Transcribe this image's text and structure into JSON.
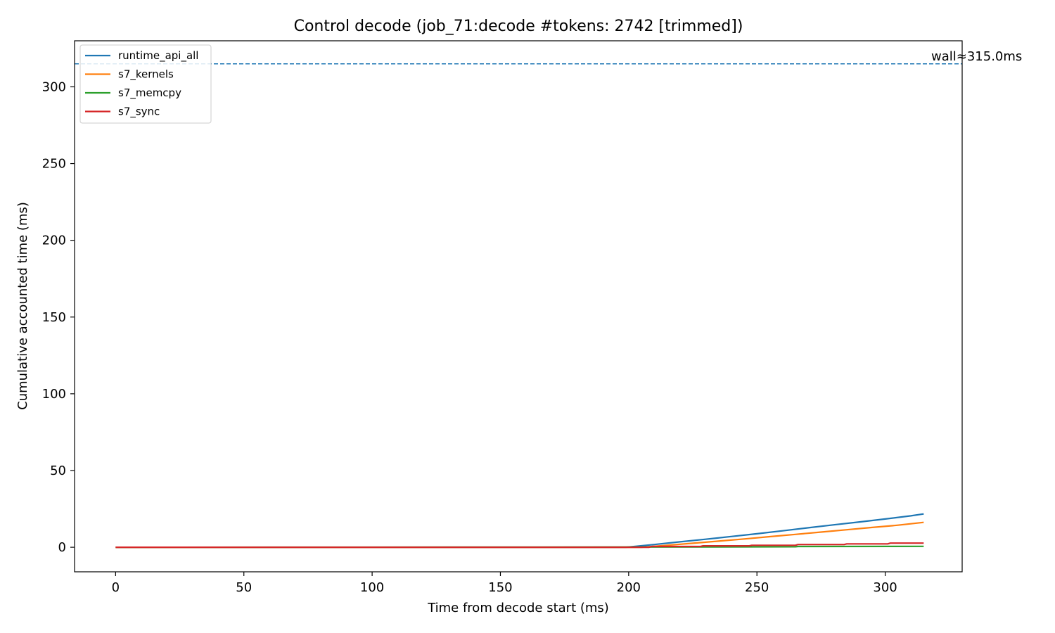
{
  "chart_data": {
    "type": "line",
    "title": "Control decode (job_71:decode #tokens: 2742 [trimmed])",
    "xlabel": "Time from decode start (ms)",
    "ylabel": "Cumulative accounted time (ms)",
    "xlim": [
      -16,
      330
    ],
    "ylim": [
      -16,
      330
    ],
    "xticks": [
      0,
      50,
      100,
      150,
      200,
      250,
      300
    ],
    "yticks": [
      0,
      50,
      100,
      150,
      200,
      250,
      300
    ],
    "grid": false,
    "legend_position": "top-left",
    "annotation": {
      "text": "wall≈315.0ms",
      "value": 315.0,
      "color": "#1f77b4"
    },
    "series": [
      {
        "name": "runtime_api_all",
        "color": "#1f77b4",
        "x": [
          0,
          199,
          210,
          220,
          230,
          240,
          250,
          260,
          270,
          280,
          290,
          300,
          310,
          315
        ],
        "y": [
          0,
          0,
          1.8,
          3.5,
          5.2,
          7.0,
          8.8,
          10.7,
          12.7,
          14.6,
          16.5,
          18.4,
          20.5,
          21.7
        ]
      },
      {
        "name": "s7_kernels",
        "color": "#ff7f0e",
        "x": [
          0,
          205,
          215,
          225,
          235,
          245,
          255,
          265,
          275,
          285,
          295,
          305,
          315
        ],
        "y": [
          0,
          0,
          1.3,
          2.6,
          4.0,
          5.4,
          6.9,
          8.4,
          9.9,
          11.4,
          12.9,
          14.4,
          16.2
        ]
      },
      {
        "name": "s7_memcpy",
        "color": "#2ca02c",
        "x": [
          0,
          230,
          265,
          266,
          315
        ],
        "y": [
          0,
          0.2,
          0.3,
          0.5,
          0.6
        ]
      },
      {
        "name": "s7_sync",
        "color": "#d62728",
        "x": [
          0,
          208,
          209,
          228,
          229,
          247,
          248,
          265,
          266,
          284,
          285,
          301,
          302,
          315
        ],
        "y": [
          0,
          0,
          0.5,
          0.5,
          0.9,
          0.9,
          1.3,
          1.3,
          1.8,
          1.8,
          2.2,
          2.2,
          2.7,
          2.7
        ]
      }
    ]
  }
}
